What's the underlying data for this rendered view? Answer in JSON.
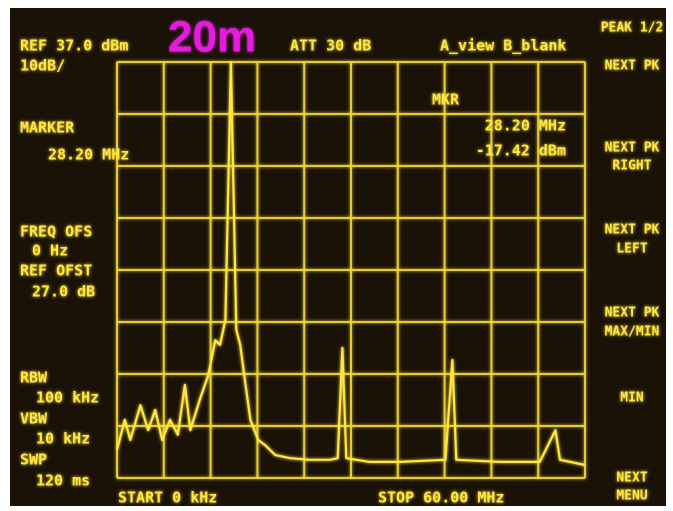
{
  "chart_data": {
    "type": "line",
    "title": "20m",
    "labels": {
      "ref": "REF 37.0 dBm",
      "att": "ATT 30 dB",
      "view": "A_view B_blank",
      "scale": "10dB/",
      "marker": "MARKER",
      "marker_freq": "28.20 MHz",
      "mkr": "MKR",
      "mkr_freq": "28.20 MHz",
      "mkr_level": "-17.42 dBm",
      "freq_ofs": "FREQ OFS",
      "freq_ofs_value": "0 Hz",
      "ref_ofst": "REF OFST",
      "ref_ofst_value": "27.0 dB",
      "rbw": "RBW",
      "rbw_value": "100 kHz",
      "vbw": "VBW",
      "vbw_value": "10 kHz",
      "swp": "SWP",
      "swp_value": "120 ms",
      "start": "START 0 kHz",
      "stop": "STOP 60.00 MHz"
    },
    "softkeys": [
      [
        "PEAK 1/2"
      ],
      [
        "NEXT PK"
      ],
      [
        "NEXT PK",
        "RIGHT"
      ],
      [
        "NEXT PK",
        "LEFT"
      ],
      [
        "NEXT PK",
        "MAX/MIN"
      ],
      [
        "MIN"
      ],
      [
        "NEXT",
        "MENU"
      ]
    ],
    "x": [
      0,
      1.0,
      1.7,
      3.0,
      4.0,
      4.9,
      5.8,
      6.8,
      7.8,
      8.7,
      9.4,
      10.6,
      11.7,
      12.6,
      13.2,
      13.9,
      14.6,
      15.3,
      15.8,
      16.4,
      17.1,
      18.1,
      19.0,
      20.3,
      22.2,
      24.7,
      27.3,
      28.3,
      28.9,
      29.4,
      32.4,
      36.3,
      42.1,
      43.0,
      43.5,
      49.1,
      54.2,
      56.2,
      56.8,
      60
    ],
    "series": [
      {
        "color": "#ffe640",
        "values": [
          -37.6,
          -31.8,
          -35.7,
          -29,
          -33.8,
          -29.9,
          -35.7,
          -31.8,
          -34.7,
          -25.1,
          -33.8,
          -28,
          -23.2,
          -16.5,
          -17.4,
          -12.6,
          37,
          -14.5,
          -17.4,
          -24.2,
          -31.8,
          -35.7,
          -36.7,
          -38.6,
          -39.2,
          -39.5,
          -39.5,
          -39.2,
          -18,
          -39.2,
          -39.9,
          -39.9,
          -39.5,
          -20.3,
          -39.5,
          -39.9,
          -39.9,
          -33.8,
          -39.5,
          -40.5
        ]
      }
    ],
    "xlim": [
      0,
      60
    ],
    "ylim": [
      -43,
      37
    ],
    "xticks": [
      0,
      6,
      12,
      18,
      24,
      30,
      36,
      42,
      48,
      54,
      60
    ],
    "yticks": [
      -43,
      -33,
      -23,
      -13,
      -3,
      7,
      17,
      27,
      37
    ],
    "grid": true
  }
}
